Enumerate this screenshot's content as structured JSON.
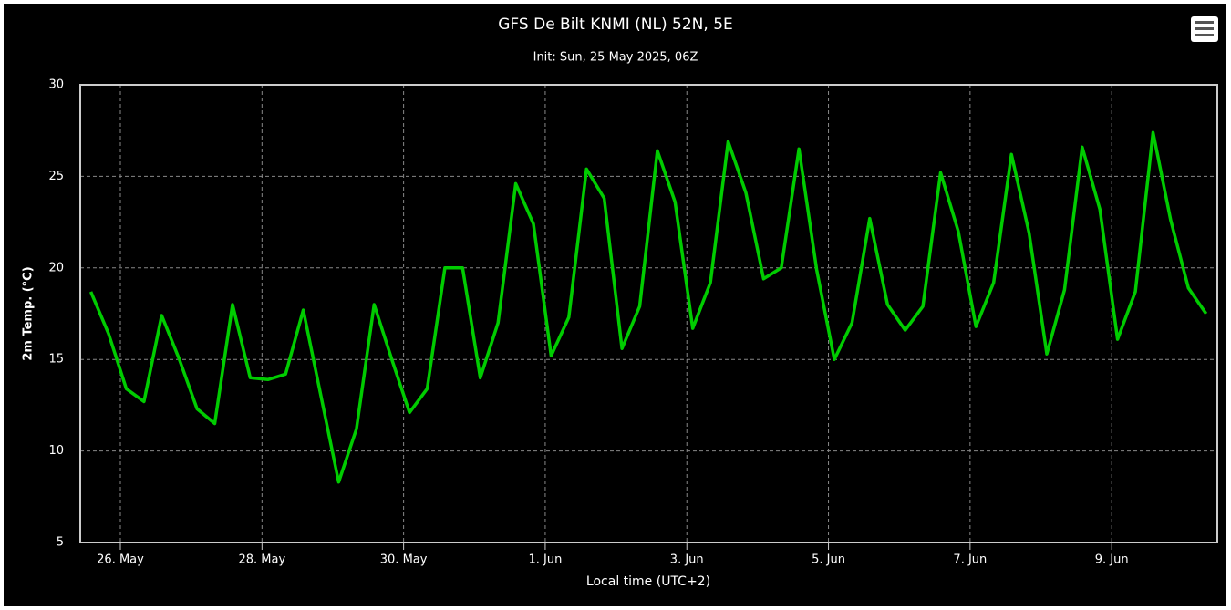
{
  "chart_data": {
    "type": "line",
    "title": "GFS De Bilt KNMI (NL) 52N, 5E",
    "subtitle": "Init: Sun, 25 May 2025, 06Z",
    "x_label": "Local time (UTC+2)",
    "y_label": "2m Temp. (°C)",
    "x": [
      "2025-05-25T14:00",
      "2025-05-25T20:00",
      "2025-05-26T02:00",
      "2025-05-26T08:00",
      "2025-05-26T14:00",
      "2025-05-26T20:00",
      "2025-05-27T02:00",
      "2025-05-27T08:00",
      "2025-05-27T14:00",
      "2025-05-27T20:00",
      "2025-05-28T02:00",
      "2025-05-28T08:00",
      "2025-05-28T14:00",
      "2025-05-28T20:00",
      "2025-05-29T02:00",
      "2025-05-29T08:00",
      "2025-05-29T14:00",
      "2025-05-29T20:00",
      "2025-05-30T02:00",
      "2025-05-30T08:00",
      "2025-05-30T14:00",
      "2025-05-30T20:00",
      "2025-05-31T02:00",
      "2025-05-31T08:00",
      "2025-05-31T14:00",
      "2025-05-31T20:00",
      "2025-06-01T02:00",
      "2025-06-01T08:00",
      "2025-06-01T14:00",
      "2025-06-01T20:00",
      "2025-06-02T02:00",
      "2025-06-02T08:00",
      "2025-06-02T14:00",
      "2025-06-02T20:00",
      "2025-06-03T02:00",
      "2025-06-03T08:00",
      "2025-06-03T14:00",
      "2025-06-03T20:00",
      "2025-06-04T02:00",
      "2025-06-04T08:00",
      "2025-06-04T14:00",
      "2025-06-04T20:00",
      "2025-06-05T02:00",
      "2025-06-05T08:00",
      "2025-06-05T14:00",
      "2025-06-05T20:00",
      "2025-06-06T02:00",
      "2025-06-06T08:00",
      "2025-06-06T14:00",
      "2025-06-06T20:00",
      "2025-06-07T02:00",
      "2025-06-07T08:00",
      "2025-06-07T14:00",
      "2025-06-07T20:00",
      "2025-06-08T02:00",
      "2025-06-08T08:00",
      "2025-06-08T14:00",
      "2025-06-08T20:00",
      "2025-06-09T02:00",
      "2025-06-09T08:00",
      "2025-06-09T14:00",
      "2025-06-09T20:00",
      "2025-06-10T02:00",
      "2025-06-10T08:00"
    ],
    "series": [
      {
        "name": "2m Temp.",
        "color": "#00cc00",
        "values": [
          18.7,
          16.4,
          13.4,
          12.7,
          17.4,
          15.0,
          12.3,
          11.5,
          18.0,
          14.0,
          13.9,
          14.2,
          17.7,
          13.0,
          8.3,
          11.2,
          18.0,
          15.0,
          12.1,
          13.4,
          20.0,
          20.0,
          14.0,
          17.0,
          24.6,
          22.4,
          15.2,
          17.3,
          25.4,
          23.8,
          15.6,
          17.9,
          26.4,
          23.6,
          16.7,
          19.2,
          26.9,
          24.1,
          19.4,
          20.0,
          26.5,
          19.9,
          15.0,
          17.0,
          22.7,
          18.0,
          16.6,
          17.9,
          25.2,
          22.0,
          16.8,
          19.2,
          26.2,
          21.9,
          15.3,
          18.8,
          26.6,
          23.2,
          16.1,
          18.7,
          27.4,
          22.6,
          18.9,
          17.5
        ]
      }
    ],
    "xlim": [
      "2025-05-25T10:24",
      "2025-06-10T11:48"
    ],
    "xticks": [
      {
        "value": "2025-05-26T00:00",
        "label": "26. May"
      },
      {
        "value": "2025-05-28T00:00",
        "label": "28. May"
      },
      {
        "value": "2025-05-30T00:00",
        "label": "30. May"
      },
      {
        "value": "2025-06-01T00:00",
        "label": "1. Jun"
      },
      {
        "value": "2025-06-03T00:00",
        "label": "3. Jun"
      },
      {
        "value": "2025-06-05T00:00",
        "label": "5. Jun"
      },
      {
        "value": "2025-06-07T00:00",
        "label": "7. Jun"
      },
      {
        "value": "2025-06-09T00:00",
        "label": "9. Jun"
      }
    ],
    "ylim": [
      5,
      30
    ],
    "yticks": [
      5,
      10,
      15,
      20,
      25,
      30
    ],
    "grid": true
  }
}
